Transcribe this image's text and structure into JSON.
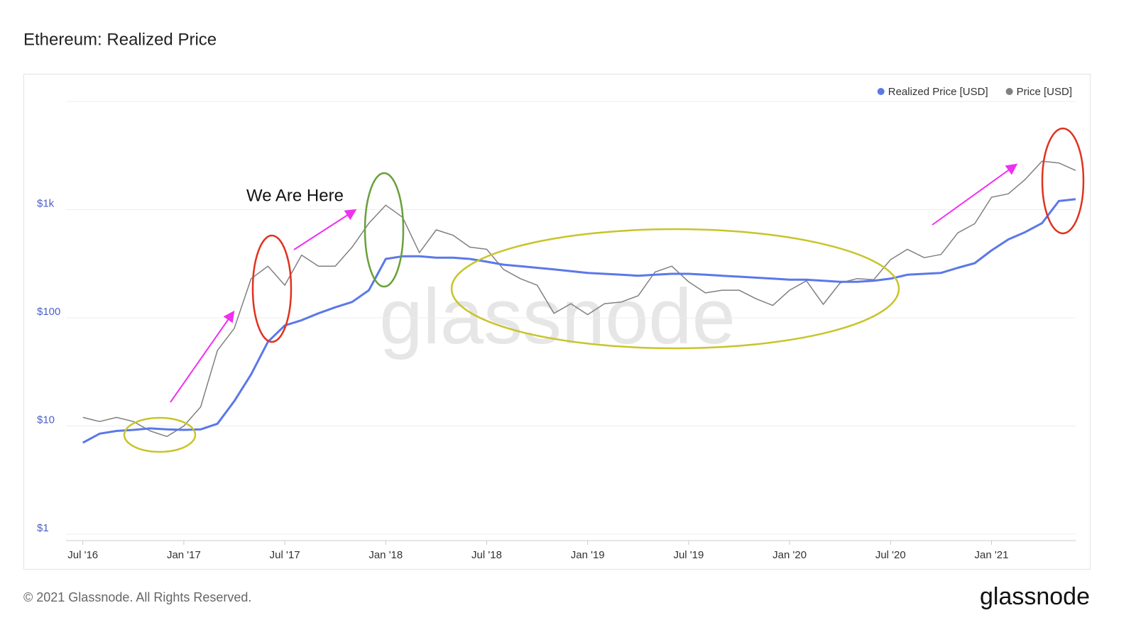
{
  "chart_data": {
    "type": "line",
    "title": "Ethereum: Realized Price",
    "log_scale": true,
    "grid": true,
    "legend": "top-right",
    "x": [
      "2016-07",
      "2016-08",
      "2016-09",
      "2016-10",
      "2016-11",
      "2016-12",
      "2017-01",
      "2017-02",
      "2017-03",
      "2017-04",
      "2017-05",
      "2017-06",
      "2017-07",
      "2017-08",
      "2017-09",
      "2017-10",
      "2017-11",
      "2017-12",
      "2018-01",
      "2018-02",
      "2018-03",
      "2018-04",
      "2018-05",
      "2018-06",
      "2018-07",
      "2018-08",
      "2018-09",
      "2018-10",
      "2018-11",
      "2018-12",
      "2019-01",
      "2019-02",
      "2019-03",
      "2019-04",
      "2019-05",
      "2019-06",
      "2019-07",
      "2019-08",
      "2019-09",
      "2019-10",
      "2019-11",
      "2019-12",
      "2020-01",
      "2020-02",
      "2020-03",
      "2020-04",
      "2020-05",
      "2020-06",
      "2020-07",
      "2020-08",
      "2020-09",
      "2020-10",
      "2020-11",
      "2020-12",
      "2021-01",
      "2021-02",
      "2021-03",
      "2021-04",
      "2021-05",
      "2021-06"
    ],
    "xlim": [
      "2016-06",
      "2021-06"
    ],
    "xticks": [
      {
        "value": "2016-07",
        "label": "Jul '16"
      },
      {
        "value": "2017-01",
        "label": "Jan '17"
      },
      {
        "value": "2017-07",
        "label": "Jul '17"
      },
      {
        "value": "2018-01",
        "label": "Jan '18"
      },
      {
        "value": "2018-07",
        "label": "Jul '18"
      },
      {
        "value": "2019-01",
        "label": "Jan '19"
      },
      {
        "value": "2019-07",
        "label": "Jul '19"
      },
      {
        "value": "2020-01",
        "label": "Jan '20"
      },
      {
        "value": "2020-07",
        "label": "Jul '20"
      },
      {
        "value": "2021-01",
        "label": "Jan '21"
      }
    ],
    "ylim": [
      1,
      10000
    ],
    "yticks": [
      {
        "value": 1,
        "label": "$1"
      },
      {
        "value": 10,
        "label": "$10"
      },
      {
        "value": 100,
        "label": "$100"
      },
      {
        "value": 1000,
        "label": "$1k"
      }
    ],
    "series": [
      {
        "name": "Realized Price [USD]",
        "color": "#5b78e8",
        "values": [
          7,
          8.5,
          9,
          9.2,
          9.5,
          9.3,
          9.2,
          9.3,
          10.5,
          17,
          30,
          60,
          85,
          95,
          110,
          125,
          140,
          180,
          350,
          370,
          370,
          360,
          360,
          350,
          330,
          310,
          300,
          290,
          280,
          270,
          260,
          255,
          250,
          245,
          250,
          255,
          255,
          250,
          245,
          240,
          235,
          230,
          225,
          225,
          220,
          215,
          215,
          220,
          230,
          250,
          255,
          260,
          290,
          320,
          420,
          530,
          620,
          750,
          1200,
          1250
        ]
      },
      {
        "name": "Price [USD]",
        "color": "#808080",
        "values": [
          12,
          11,
          12,
          11,
          9,
          8,
          10,
          15,
          50,
          80,
          230,
          300,
          200,
          380,
          300,
          300,
          450,
          750,
          1100,
          850,
          400,
          650,
          580,
          450,
          430,
          280,
          230,
          200,
          110,
          135,
          107,
          135,
          140,
          160,
          265,
          300,
          215,
          170,
          180,
          180,
          150,
          130,
          180,
          220,
          133,
          210,
          230,
          225,
          345,
          430,
          360,
          385,
          610,
          740,
          1300,
          1400,
          1900,
          2800,
          2700,
          2300
        ]
      }
    ],
    "annotations": [
      "We Are Here"
    ],
    "watermark": "glassnode",
    "footer": "© 2021 Glassnode. All Rights Reserved.",
    "logo": "glassnode"
  }
}
